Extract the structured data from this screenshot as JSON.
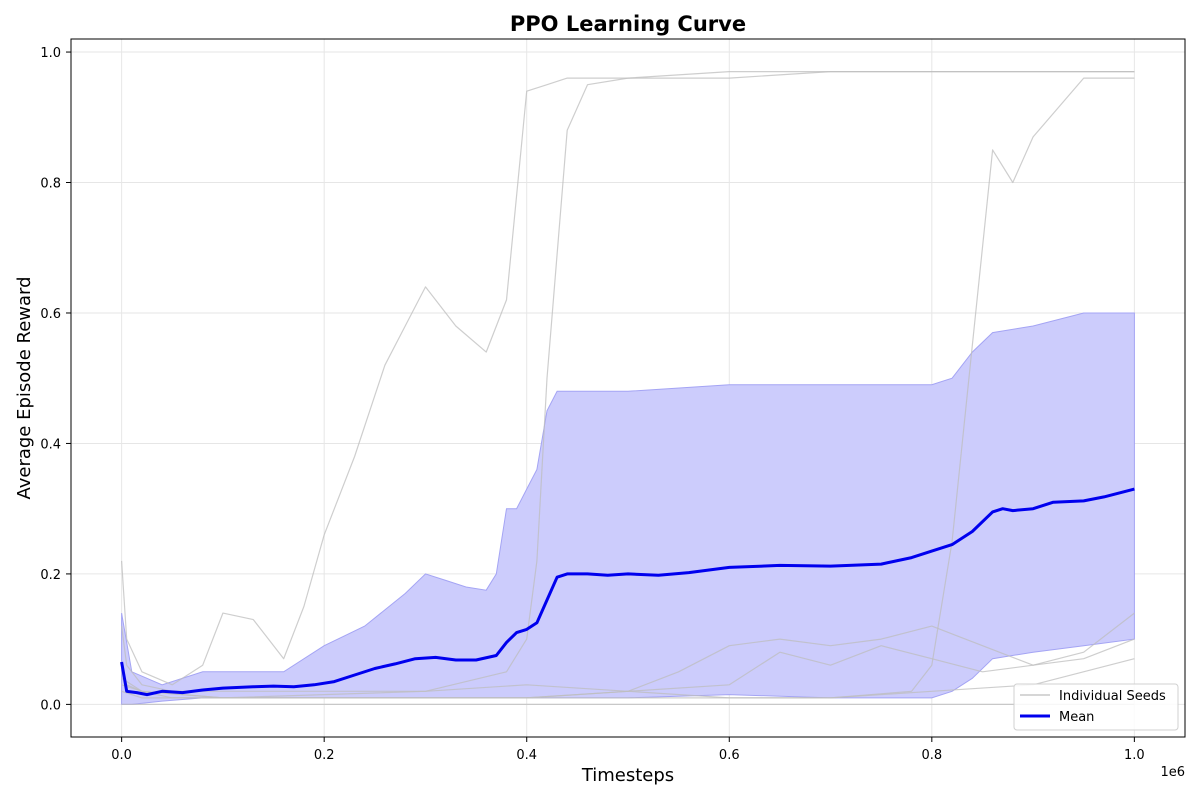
{
  "chart_data": {
    "type": "line",
    "title": "PPO Learning Curve",
    "xlabel": "Timesteps",
    "ylabel": "Average Episode Reward",
    "x_offset_label": "1e6",
    "xlim": [
      -50000,
      1050000
    ],
    "ylim": [
      -0.05,
      1.02
    ],
    "xticks": [
      0,
      200000,
      400000,
      600000,
      800000,
      1000000
    ],
    "xtick_labels": [
      "0.0",
      "0.2",
      "0.4",
      "0.6",
      "0.8",
      "1.0"
    ],
    "yticks": [
      0.0,
      0.2,
      0.4,
      0.6,
      0.8,
      1.0
    ],
    "ytick_labels": [
      "0.0",
      "0.2",
      "0.4",
      "0.6",
      "0.8",
      "1.0"
    ],
    "grid": true,
    "legend_position": "lower-right",
    "legend": [
      "Individual Seeds",
      "Mean"
    ],
    "colors": {
      "seed": "#bdbdbd",
      "mean": "#0000ee",
      "band_fill": "#ccccfc",
      "band_edge": "#a4a4f4"
    },
    "series": [
      {
        "name": "Individual Seeds",
        "x": [
          0,
          5000,
          20000,
          50000,
          80000,
          100000,
          130000,
          160000,
          180000,
          200000,
          230000,
          260000,
          280000,
          300000,
          330000,
          360000,
          380000,
          400000,
          420000,
          440000,
          500000,
          600000,
          700000,
          800000,
          900000,
          1000000
        ],
        "values": [
          0.22,
          0.1,
          0.05,
          0.03,
          0.06,
          0.14,
          0.13,
          0.07,
          0.15,
          0.26,
          0.38,
          0.52,
          0.58,
          0.64,
          0.58,
          0.54,
          0.62,
          0.94,
          0.95,
          0.96,
          0.96,
          0.96,
          0.97,
          0.97,
          0.97,
          0.97
        ]
      },
      {
        "name": "Individual Seeds",
        "x": [
          0,
          5000,
          20000,
          50000,
          100000,
          200000,
          300000,
          380000,
          400000,
          410000,
          420000,
          440000,
          460000,
          500000,
          600000,
          700000,
          800000,
          900000,
          1000000
        ],
        "values": [
          0.12,
          0.06,
          0.03,
          0.02,
          0.02,
          0.02,
          0.02,
          0.05,
          0.1,
          0.22,
          0.5,
          0.88,
          0.95,
          0.96,
          0.97,
          0.97,
          0.97,
          0.97,
          0.97
        ]
      },
      {
        "name": "Individual Seeds",
        "x": [
          0,
          5000,
          20000,
          50000,
          100000,
          200000,
          300000,
          400000,
          500000,
          600000,
          700000,
          780000,
          800000,
          820000,
          840000,
          860000,
          880000,
          900000,
          950000,
          1000000
        ],
        "values": [
          0.05,
          0.03,
          0.02,
          0.01,
          0.01,
          0.01,
          0.01,
          0.01,
          0.01,
          0.01,
          0.01,
          0.02,
          0.06,
          0.25,
          0.55,
          0.85,
          0.8,
          0.87,
          0.96,
          0.96
        ]
      },
      {
        "name": "Individual Seeds",
        "x": [
          0,
          20000,
          100000,
          200000,
          300000,
          400000,
          500000,
          550000,
          600000,
          650000,
          700000,
          750000,
          800000,
          850000,
          900000,
          950000,
          1000000
        ],
        "values": [
          0.04,
          0.02,
          0.01,
          0.01,
          0.01,
          0.01,
          0.02,
          0.05,
          0.09,
          0.1,
          0.09,
          0.1,
          0.12,
          0.09,
          0.06,
          0.08,
          0.14
        ]
      },
      {
        "name": "Individual Seeds",
        "x": [
          0,
          20000,
          100000,
          200000,
          300000,
          400000,
          500000,
          600000,
          650000,
          700000,
          750000,
          800000,
          850000,
          900000,
          950000,
          1000000
        ],
        "values": [
          0.03,
          0.02,
          0.01,
          0.01,
          0.01,
          0.01,
          0.02,
          0.03,
          0.08,
          0.06,
          0.09,
          0.07,
          0.05,
          0.06,
          0.07,
          0.1
        ]
      },
      {
        "name": "Individual Seeds",
        "x": [
          0,
          20000,
          100000,
          300000,
          400000,
          500000,
          600000,
          700000,
          800000,
          900000,
          1000000
        ],
        "values": [
          0.02,
          0.01,
          0.01,
          0.02,
          0.03,
          0.02,
          0.01,
          0.01,
          0.02,
          0.03,
          0.07
        ]
      },
      {
        "name": "Individual Seeds",
        "x": [
          0,
          100000,
          300000,
          500000,
          700000,
          900000,
          1000000
        ],
        "values": [
          0.0,
          0.0,
          0.0,
          0.0,
          0.0,
          0.0,
          0.0
        ]
      },
      {
        "name": "Mean",
        "x": [
          0,
          5000,
          15000,
          25000,
          40000,
          60000,
          80000,
          100000,
          130000,
          150000,
          170000,
          190000,
          210000,
          230000,
          250000,
          270000,
          290000,
          310000,
          330000,
          350000,
          370000,
          380000,
          390000,
          400000,
          410000,
          420000,
          430000,
          440000,
          460000,
          480000,
          500000,
          530000,
          560000,
          600000,
          650000,
          700000,
          750000,
          780000,
          800000,
          820000,
          840000,
          860000,
          870000,
          880000,
          900000,
          920000,
          950000,
          970000,
          1000000
        ],
        "values": [
          0.065,
          0.02,
          0.018,
          0.015,
          0.02,
          0.018,
          0.022,
          0.025,
          0.027,
          0.028,
          0.027,
          0.03,
          0.035,
          0.045,
          0.055,
          0.062,
          0.07,
          0.072,
          0.068,
          0.068,
          0.075,
          0.095,
          0.11,
          0.115,
          0.125,
          0.16,
          0.195,
          0.2,
          0.2,
          0.198,
          0.2,
          0.198,
          0.202,
          0.21,
          0.213,
          0.212,
          0.215,
          0.225,
          0.235,
          0.245,
          0.265,
          0.295,
          0.3,
          0.297,
          0.3,
          0.31,
          0.312,
          0.318,
          0.33
        ]
      }
    ],
    "band": {
      "x": [
        0,
        10000,
        40000,
        80000,
        120000,
        160000,
        200000,
        240000,
        280000,
        300000,
        320000,
        340000,
        360000,
        370000,
        380000,
        390000,
        400000,
        410000,
        420000,
        430000,
        440000,
        500000,
        600000,
        700000,
        800000,
        820000,
        840000,
        860000,
        900000,
        950000,
        1000000
      ],
      "upper": [
        0.14,
        0.05,
        0.03,
        0.05,
        0.05,
        0.05,
        0.09,
        0.12,
        0.17,
        0.2,
        0.19,
        0.18,
        0.175,
        0.2,
        0.3,
        0.3,
        0.33,
        0.36,
        0.45,
        0.48,
        0.48,
        0.48,
        0.49,
        0.49,
        0.49,
        0.5,
        0.54,
        0.57,
        0.58,
        0.6,
        0.6
      ],
      "lower": [
        0.0,
        0.0,
        0.005,
        0.01,
        0.01,
        0.01,
        0.01,
        0.01,
        0.01,
        0.01,
        0.01,
        0.01,
        0.01,
        0.01,
        0.01,
        0.01,
        0.01,
        0.01,
        0.01,
        0.01,
        0.01,
        0.01,
        0.015,
        0.01,
        0.01,
        0.02,
        0.04,
        0.07,
        0.08,
        0.09,
        0.1
      ]
    }
  }
}
